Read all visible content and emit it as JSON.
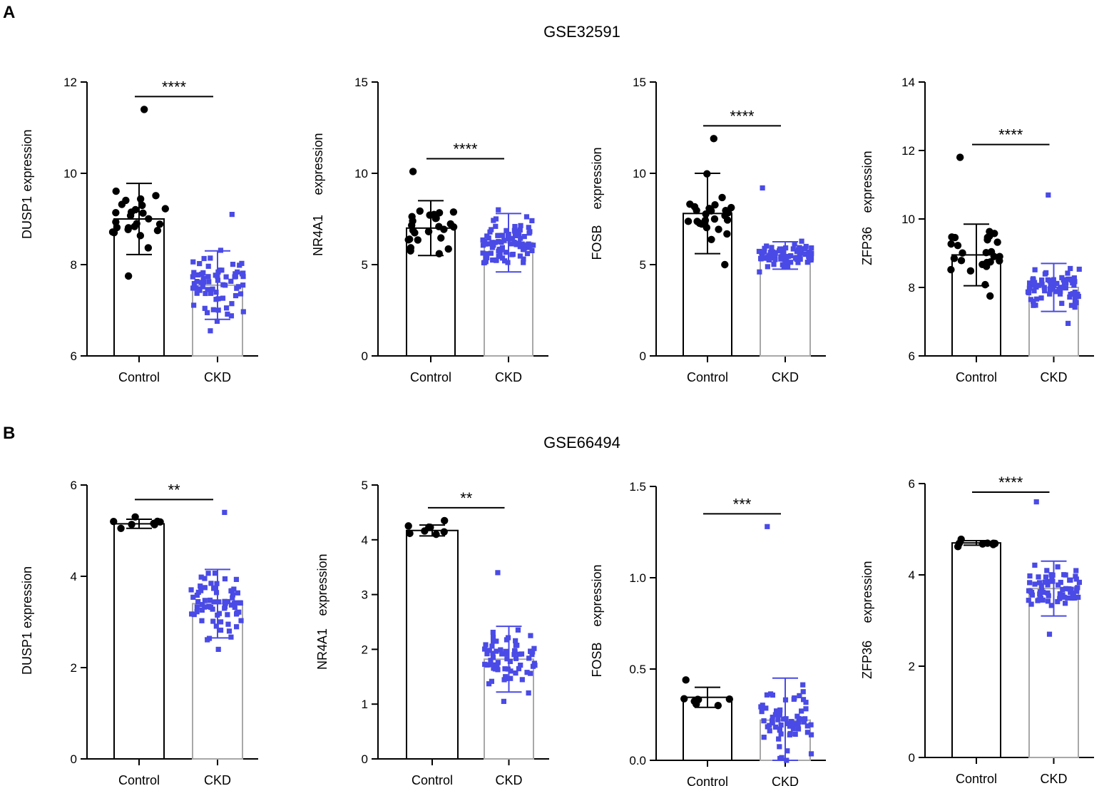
{
  "panels": [
    {
      "label": "A",
      "dataset": "GSE32591"
    },
    {
      "label": "B",
      "dataset": "GSE66494"
    }
  ],
  "colors": {
    "control_point": "#000000",
    "ckd_point": "#4a4ae6",
    "control_bar": "#000000",
    "ckd_bar": "#a8a8a8",
    "axis": "#000000"
  },
  "chart_data": [
    {
      "type": "bar",
      "panel": "A",
      "dataset": "GSE32591",
      "ylabel": "DUSP1  expression",
      "ylabel_parts": [
        "DUSP1",
        "expression"
      ],
      "categories": [
        "Control",
        "CKD"
      ],
      "ylim": [
        6,
        12
      ],
      "yticks": [
        6,
        8,
        10,
        12
      ],
      "means": [
        9.0,
        7.55
      ],
      "sd": [
        0.78,
        0.75
      ],
      "significance": "****",
      "n": [
        27,
        70
      ],
      "ranges": [
        [
          7.75,
          11.4
        ],
        [
          6.55,
          9.1
        ]
      ]
    },
    {
      "type": "bar",
      "panel": "A",
      "dataset": "GSE32591",
      "ylabel": "NR4A1   expression",
      "ylabel_parts": [
        "NR4A1",
        "expression"
      ],
      "categories": [
        "Control",
        "CKD"
      ],
      "ylim": [
        0,
        15
      ],
      "yticks": [
        0,
        5,
        10,
        15
      ],
      "means": [
        7.0,
        6.2
      ],
      "sd": [
        1.5,
        1.6
      ],
      "significance": "****",
      "n": [
        27,
        90
      ],
      "ranges": [
        [
          5.6,
          10.1
        ],
        [
          5.1,
          8.0
        ]
      ]
    },
    {
      "type": "bar",
      "panel": "A",
      "dataset": "GSE32591",
      "ylabel": "FOSB   expression",
      "ylabel_parts": [
        "FOSB",
        "expression"
      ],
      "categories": [
        "Control",
        "CKD"
      ],
      "ylim": [
        0,
        15
      ],
      "yticks": [
        0,
        5,
        10,
        15
      ],
      "means": [
        7.8,
        5.5
      ],
      "sd": [
        2.2,
        0.75
      ],
      "significance": "****",
      "n": [
        27,
        80
      ],
      "ranges": [
        [
          5.0,
          11.9
        ],
        [
          4.6,
          9.2
        ]
      ]
    },
    {
      "type": "bar",
      "panel": "A",
      "dataset": "GSE32591",
      "ylabel": "ZFP36   expression",
      "ylabel_parts": [
        "ZFP36",
        "expression"
      ],
      "categories": [
        "Control",
        "CKD"
      ],
      "ylim": [
        6,
        14
      ],
      "yticks": [
        6,
        8,
        10,
        12,
        14
      ],
      "means": [
        8.95,
        8.0
      ],
      "sd": [
        0.9,
        0.7
      ],
      "significance": "****",
      "n": [
        27,
        80
      ],
      "ranges": [
        [
          7.75,
          11.8
        ],
        [
          6.95,
          10.7
        ]
      ]
    },
    {
      "type": "bar",
      "panel": "B",
      "dataset": "GSE66494",
      "ylabel": "DUSP1 expression",
      "ylabel_parts": [
        "DUSP1 expression"
      ],
      "categories": [
        "Control",
        "CKD"
      ],
      "ylim": [
        0,
        6
      ],
      "yticks": [
        0,
        2,
        4,
        6
      ],
      "means": [
        5.15,
        3.4
      ],
      "sd": [
        0.1,
        0.75
      ],
      "significance": "**",
      "n": [
        8,
        70
      ],
      "ranges": [
        [
          5.05,
          5.3
        ],
        [
          2.4,
          5.4
        ]
      ]
    },
    {
      "type": "bar",
      "panel": "B",
      "dataset": "GSE66494",
      "ylabel": "NR4A1   expression",
      "ylabel_parts": [
        "NR4A1",
        "expression"
      ],
      "categories": [
        "Control",
        "CKD"
      ],
      "ylim": [
        0,
        5
      ],
      "yticks": [
        0,
        1,
        2,
        3,
        4,
        5
      ],
      "means": [
        4.17,
        1.82
      ],
      "sd": [
        0.1,
        0.6
      ],
      "significance": "**",
      "n": [
        8,
        70
      ],
      "ranges": [
        [
          4.1,
          4.35
        ],
        [
          1.05,
          3.4
        ]
      ]
    },
    {
      "type": "bar",
      "panel": "B",
      "dataset": "GSE66494",
      "ylabel": "FOSB   expression",
      "ylabel_parts": [
        "FOSB",
        "expression"
      ],
      "categories": [
        "Control",
        "CKD"
      ],
      "ylim": [
        0.0,
        1.5
      ],
      "yticks": [
        0.0,
        0.5,
        1.0,
        1.5
      ],
      "ytick_labels": [
        "0.0",
        "0.5",
        "1.0",
        "1.5"
      ],
      "means": [
        0.345,
        0.22
      ],
      "sd": [
        0.055,
        0.23
      ],
      "significance": "***",
      "n": [
        8,
        70
      ],
      "ranges": [
        [
          0.3,
          0.44
        ],
        [
          0.0,
          1.28
        ]
      ]
    },
    {
      "type": "bar",
      "panel": "B",
      "dataset": "GSE66494",
      "ylabel": "ZFP36   expression",
      "ylabel_parts": [
        "ZFP36",
        "expression"
      ],
      "categories": [
        "Control",
        "CKD"
      ],
      "ylim": [
        0,
        6
      ],
      "yticks": [
        0,
        2,
        4,
        6
      ],
      "means": [
        4.7,
        3.7
      ],
      "sd": [
        0.05,
        0.6
      ],
      "significance": "****",
      "n": [
        8,
        70
      ],
      "ranges": [
        [
          4.62,
          4.78
        ],
        [
          2.7,
          5.6
        ]
      ]
    }
  ]
}
